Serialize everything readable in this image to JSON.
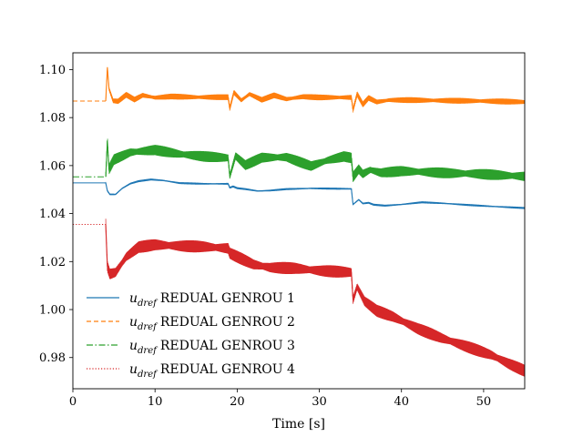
{
  "chart_data": {
    "type": "line",
    "title": "",
    "xlabel": "Time [s]",
    "ylabel": "",
    "xlim": [
      0,
      55
    ],
    "ylim": [
      0.967,
      1.107
    ],
    "xticks": [
      0,
      10,
      20,
      30,
      40,
      50
    ],
    "yticks": [
      0.98,
      1.0,
      1.02,
      1.04,
      1.06,
      1.08,
      1.1
    ],
    "xtick_labels": [
      "0",
      "10",
      "20",
      "30",
      "40",
      "50"
    ],
    "ytick_labels": [
      "0.98",
      "1.00",
      "1.02",
      "1.04",
      "1.06",
      "1.08",
      "1.10"
    ],
    "grid": false,
    "legend_position": "bottom-left",
    "series": [
      {
        "name_sym": "u",
        "name_sub": "dref",
        "name_text": "REDUAL GENROU 1",
        "color": "#1f77b4",
        "linestyle": "solid",
        "band": 0.0004,
        "points": [
          [
            0,
            1.0528
          ],
          [
            4.0,
            1.0528
          ],
          [
            4.2,
            1.0495
          ],
          [
            4.5,
            1.048
          ],
          [
            5.2,
            1.048
          ],
          [
            6,
            1.0505
          ],
          [
            7,
            1.0525
          ],
          [
            8,
            1.0535
          ],
          [
            9.5,
            1.0542
          ],
          [
            11,
            1.0538
          ],
          [
            13,
            1.0527
          ],
          [
            16,
            1.0524
          ],
          [
            18.9,
            1.0524
          ],
          [
            19.1,
            1.0508
          ],
          [
            19.5,
            1.0513
          ],
          [
            20,
            1.0506
          ],
          [
            21,
            1.0502
          ],
          [
            22.5,
            1.0494
          ],
          [
            24,
            1.0496
          ],
          [
            26,
            1.0502
          ],
          [
            29,
            1.0505
          ],
          [
            33.9,
            1.0503
          ],
          [
            34.1,
            1.0438
          ],
          [
            34.8,
            1.0458
          ],
          [
            35.3,
            1.0442
          ],
          [
            36,
            1.0445
          ],
          [
            36.6,
            1.0437
          ],
          [
            38,
            1.0433
          ],
          [
            40,
            1.0438
          ],
          [
            42.5,
            1.0447
          ],
          [
            45,
            1.0443
          ],
          [
            48,
            1.0436
          ],
          [
            51,
            1.043
          ],
          [
            55,
            1.0423
          ]
        ]
      },
      {
        "name_sym": "u",
        "name_sub": "dref",
        "name_text": "REDUAL GENROU 2",
        "color": "#ff7f0e",
        "linestyle": "dashed",
        "band": 0.0012,
        "points": [
          [
            0,
            1.0869
          ],
          [
            4.0,
            1.0869
          ],
          [
            4.2,
            1.101
          ],
          [
            4.4,
            1.092
          ],
          [
            4.9,
            1.087
          ],
          [
            5.5,
            1.0868
          ],
          [
            6.5,
            1.0895
          ],
          [
            7.5,
            1.0875
          ],
          [
            8.5,
            1.0893
          ],
          [
            10,
            1.0883
          ],
          [
            12,
            1.0888
          ],
          [
            15,
            1.0885
          ],
          [
            18.9,
            1.0885
          ],
          [
            19.1,
            1.0838
          ],
          [
            19.6,
            1.0905
          ],
          [
            20.5,
            1.0872
          ],
          [
            21.5,
            1.0898
          ],
          [
            23,
            1.0874
          ],
          [
            24.5,
            1.0893
          ],
          [
            26,
            1.0877
          ],
          [
            28,
            1.0887
          ],
          [
            30,
            1.0884
          ],
          [
            33.9,
            1.0884
          ],
          [
            34.1,
            1.0832
          ],
          [
            34.6,
            1.0898
          ],
          [
            35.3,
            1.0855
          ],
          [
            36,
            1.0882
          ],
          [
            37,
            1.0865
          ],
          [
            38.5,
            1.0873
          ],
          [
            41,
            1.0873
          ],
          [
            45,
            1.0871
          ],
          [
            50,
            1.0869
          ],
          [
            55,
            1.0865
          ]
        ]
      },
      {
        "name_sym": "u",
        "name_sub": "dref",
        "name_text": "REDUAL GENROU 3",
        "color": "#2ca02c",
        "linestyle": "dashdot",
        "band": 0.0022,
        "points": [
          [
            0,
            1.0553
          ],
          [
            4.0,
            1.0553
          ],
          [
            4.2,
            1.0705
          ],
          [
            4.4,
            1.0585
          ],
          [
            5,
            1.0625
          ],
          [
            7,
            1.0655
          ],
          [
            10,
            1.0665
          ],
          [
            13,
            1.0648
          ],
          [
            16,
            1.0638
          ],
          [
            18.9,
            1.0632
          ],
          [
            19.1,
            1.0555
          ],
          [
            19.8,
            1.064
          ],
          [
            21,
            1.0602
          ],
          [
            23,
            1.0633
          ],
          [
            26,
            1.0635
          ],
          [
            29,
            1.0598
          ],
          [
            31,
            1.0622
          ],
          [
            33,
            1.0638
          ],
          [
            33.9,
            1.0632
          ],
          [
            34.1,
            1.0553
          ],
          [
            34.8,
            1.0585
          ],
          [
            35.3,
            1.0565
          ],
          [
            36.2,
            1.0582
          ],
          [
            37.5,
            1.057
          ],
          [
            40,
            1.0577
          ],
          [
            43,
            1.0573
          ],
          [
            46,
            1.0568
          ],
          [
            49,
            1.0566
          ],
          [
            52,
            1.056
          ],
          [
            55,
            1.0555
          ]
        ]
      },
      {
        "name_sym": "u",
        "name_sub": "dref",
        "name_text": "REDUAL GENROU 4",
        "color": "#d62728",
        "linestyle": "dotted",
        "band": 0.0025,
        "points": [
          [
            0,
            1.0355
          ],
          [
            4.0,
            1.0355
          ],
          [
            4.2,
            1.018
          ],
          [
            4.5,
            1.0148
          ],
          [
            5.2,
            1.0155
          ],
          [
            6.5,
            1.022
          ],
          [
            8,
            1.026
          ],
          [
            10,
            1.027
          ],
          [
            13,
            1.0265
          ],
          [
            16,
            1.0262
          ],
          [
            18.9,
            1.0255
          ],
          [
            19.1,
            1.0235
          ],
          [
            20,
            1.022
          ],
          [
            22,
            1.0188
          ],
          [
            24,
            1.0175
          ],
          [
            27,
            1.0172
          ],
          [
            30,
            1.0162
          ],
          [
            33.9,
            1.0155
          ],
          [
            34.1,
            1.004
          ],
          [
            34.6,
            1.0095
          ],
          [
            35.5,
            1.0035
          ],
          [
            37,
            0.9995
          ],
          [
            39,
            0.997
          ],
          [
            42,
            0.992
          ],
          [
            45,
            0.988
          ],
          [
            48,
            0.9845
          ],
          [
            51,
            0.981
          ],
          [
            53,
            0.9775
          ],
          [
            55,
            0.9745
          ]
        ]
      }
    ]
  }
}
